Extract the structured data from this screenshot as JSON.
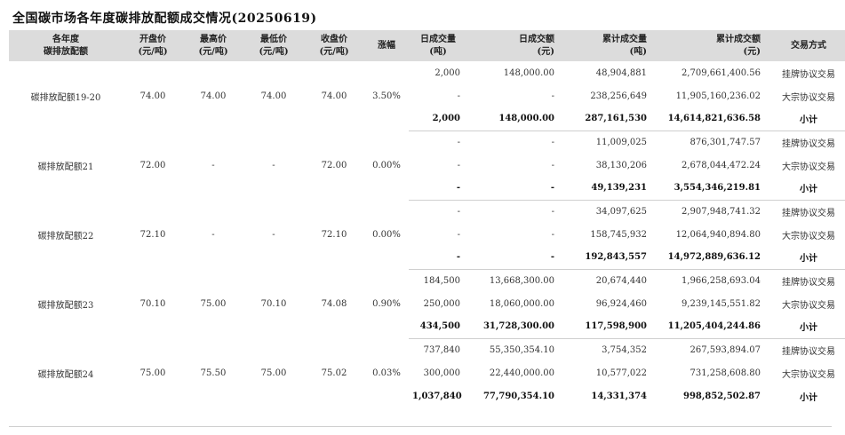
{
  "title": "全国碳市场各年度碳排放配额成交情况(20250619)",
  "headers": {
    "year": "各年度\n碳排放配额",
    "open": "开盘价\n(元/吨)",
    "high": "最高价\n(元/吨)",
    "low": "最低价\n(元/吨)",
    "close": "收盘价\n(元/吨)",
    "change": "涨幅",
    "day_volume": "日成交量\n(吨)",
    "day_amount": "日成交额\n(元)",
    "cum_volume": "累计成交量\n(吨)",
    "cum_amount": "累计成交额\n(元)",
    "method": "交易方式"
  },
  "groups": [
    {
      "name": "碳排放配额19-20",
      "open": "74.00",
      "high": "74.00",
      "low": "74.00",
      "close": "74.00",
      "change": "3.50%",
      "rows": [
        {
          "day_volume": "2,000",
          "day_amount": "148,000.00",
          "cum_volume": "48,904,881",
          "cum_amount": "2,709,661,400.56",
          "method": "挂牌协议交易"
        },
        {
          "day_volume": "-",
          "day_amount": "-",
          "cum_volume": "238,256,649",
          "cum_amount": "11,905,160,236.02",
          "method": "大宗协议交易"
        },
        {
          "day_volume": "2,000",
          "day_amount": "148,000.00",
          "cum_volume": "287,161,530",
          "cum_amount": "14,614,821,636.58",
          "method": "小计"
        }
      ]
    },
    {
      "name": "碳排放配额21",
      "open": "72.00",
      "high": "-",
      "low": "-",
      "close": "72.00",
      "change": "0.00%",
      "rows": [
        {
          "day_volume": "-",
          "day_amount": "-",
          "cum_volume": "11,009,025",
          "cum_amount": "876,301,747.57",
          "method": "挂牌协议交易"
        },
        {
          "day_volume": "-",
          "day_amount": "-",
          "cum_volume": "38,130,206",
          "cum_amount": "2,678,044,472.24",
          "method": "大宗协议交易"
        },
        {
          "day_volume": "-",
          "day_amount": "-",
          "cum_volume": "49,139,231",
          "cum_amount": "3,554,346,219.81",
          "method": "小计"
        }
      ]
    },
    {
      "name": "碳排放配额22",
      "open": "72.10",
      "high": "-",
      "low": "-",
      "close": "72.10",
      "change": "0.00%",
      "rows": [
        {
          "day_volume": "-",
          "day_amount": "-",
          "cum_volume": "34,097,625",
          "cum_amount": "2,907,948,741.32",
          "method": "挂牌协议交易"
        },
        {
          "day_volume": "-",
          "day_amount": "-",
          "cum_volume": "158,745,932",
          "cum_amount": "12,064,940,894.80",
          "method": "大宗协议交易"
        },
        {
          "day_volume": "-",
          "day_amount": "-",
          "cum_volume": "192,843,557",
          "cum_amount": "14,972,889,636.12",
          "method": "小计"
        }
      ]
    },
    {
      "name": "碳排放配额23",
      "open": "70.10",
      "high": "75.00",
      "low": "70.10",
      "close": "74.08",
      "change": "0.90%",
      "rows": [
        {
          "day_volume": "184,500",
          "day_amount": "13,668,300.00",
          "cum_volume": "20,674,440",
          "cum_amount": "1,966,258,693.04",
          "method": "挂牌协议交易"
        },
        {
          "day_volume": "250,000",
          "day_amount": "18,060,000.00",
          "cum_volume": "96,924,460",
          "cum_amount": "9,239,145,551.82",
          "method": "大宗协议交易"
        },
        {
          "day_volume": "434,500",
          "day_amount": "31,728,300.00",
          "cum_volume": "117,598,900",
          "cum_amount": "11,205,404,244.86",
          "method": "小计"
        }
      ]
    },
    {
      "name": "碳排放配额24",
      "open": "75.00",
      "high": "75.50",
      "low": "75.00",
      "close": "75.02",
      "change": "0.03%",
      "rows": [
        {
          "day_volume": "737,840",
          "day_amount": "55,350,354.10",
          "cum_volume": "3,754,352",
          "cum_amount": "267,593,894.07",
          "method": "挂牌协议交易"
        },
        {
          "day_volume": "300,000",
          "day_amount": "22,440,000.00",
          "cum_volume": "10,577,022",
          "cum_amount": "731,258,608.80",
          "method": "大宗协议交易"
        },
        {
          "day_volume": "1,037,840",
          "day_amount": "77,790,354.10",
          "cum_volume": "14,331,374",
          "cum_amount": "998,852,502.87",
          "method": "小计"
        }
      ]
    }
  ]
}
